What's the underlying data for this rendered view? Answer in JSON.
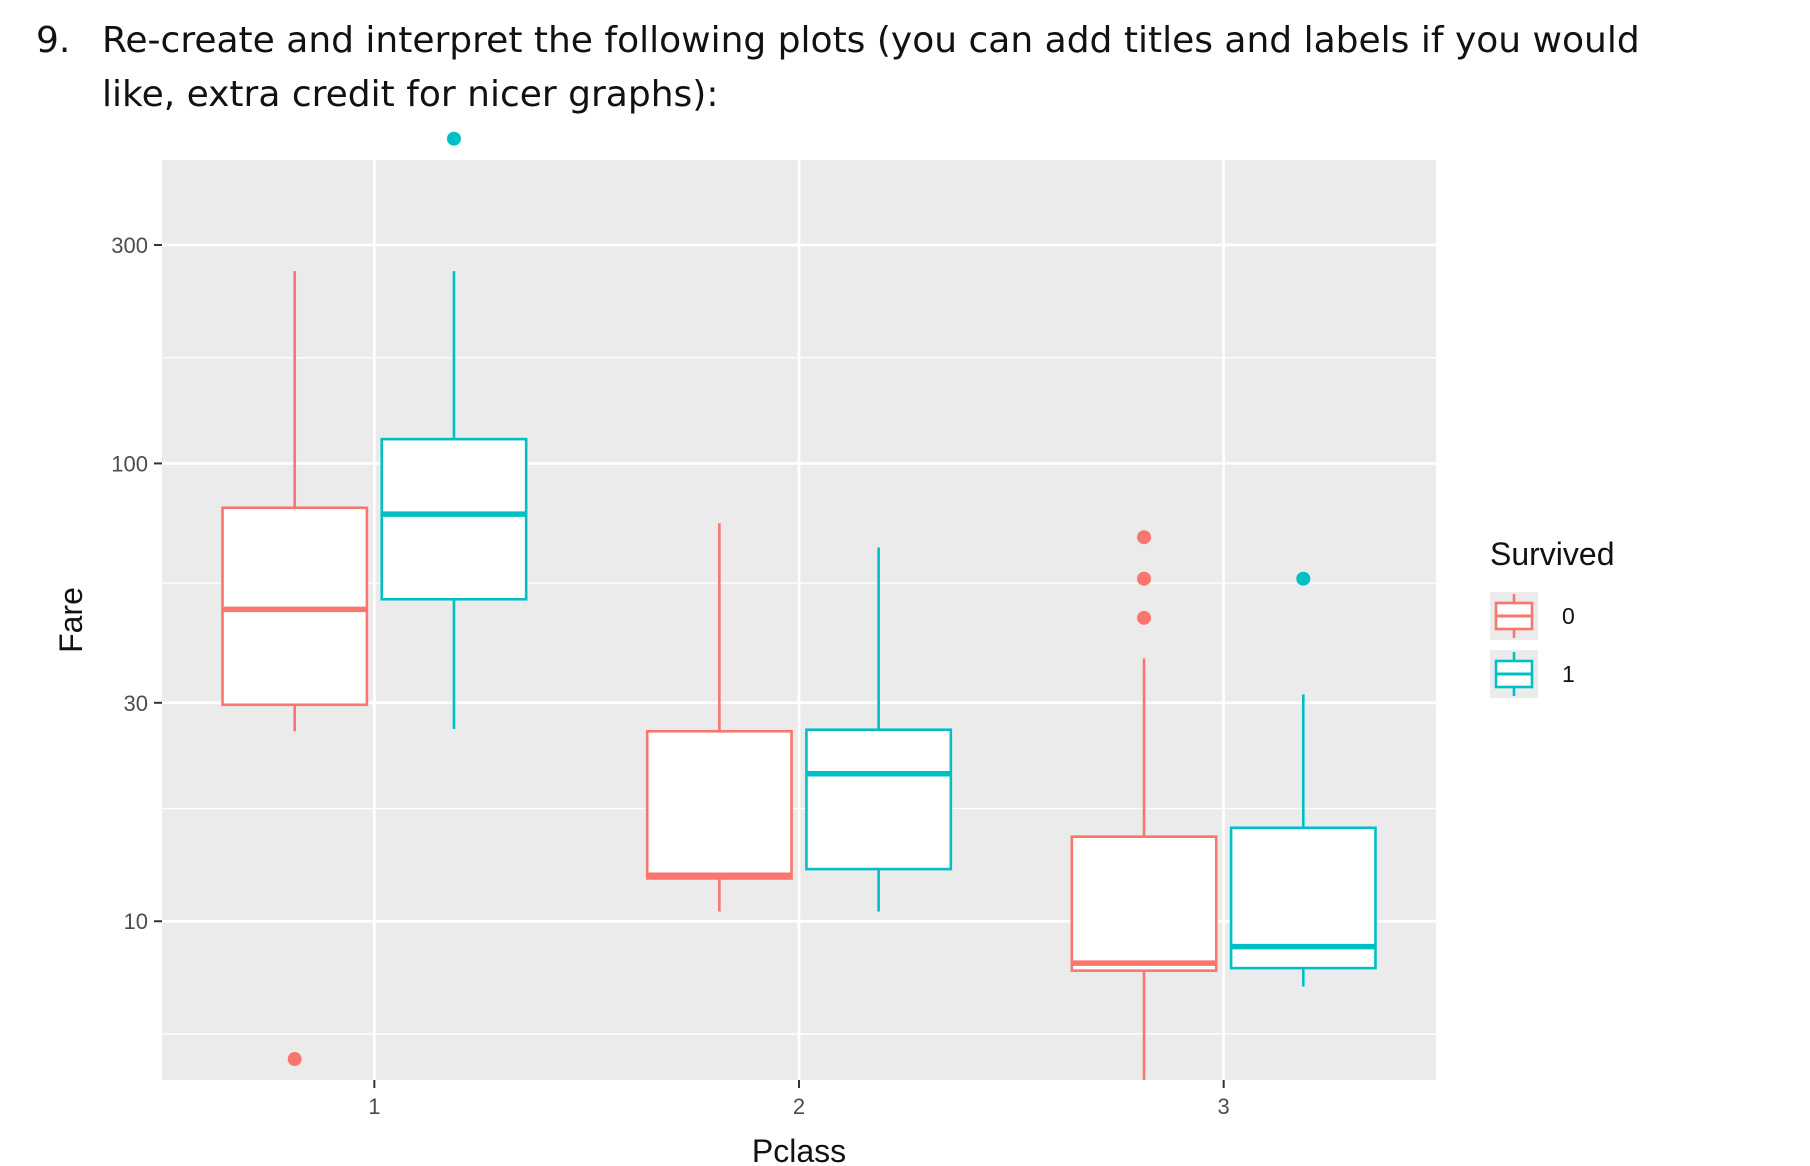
{
  "question": {
    "number": "9.",
    "text": "Re-create and interpret the following plots (you can add titles and labels if you would like, extra credit for nicer graphs):"
  },
  "chart_data": {
    "type": "boxplot",
    "xlabel": "Pclass",
    "ylabel": "Fare",
    "y_scale": "log10",
    "y_ticks": [
      10,
      30,
      100,
      300
    ],
    "ylim": [
      4.5,
      460
    ],
    "categories": [
      "1",
      "2",
      "3"
    ],
    "grid": true,
    "legend": {
      "title": "Survived",
      "position": "right"
    },
    "colors": {
      "0": "#F8766D",
      "1": "#00BFC4",
      "panel": "#EBEBEB",
      "grid": "#FFFFFF"
    },
    "series": [
      {
        "name": "0",
        "boxes": [
          {
            "category": "1",
            "whisker_low": 26,
            "q1": 29.7,
            "median": 48,
            "q3": 80,
            "whisker_high": 263,
            "outliers": [
              5
            ]
          },
          {
            "category": "2",
            "whisker_low": 10.5,
            "q1": 12.4,
            "median": 12.6,
            "q3": 26,
            "whisker_high": 74,
            "outliers": []
          },
          {
            "category": "3",
            "whisker_low": 4.5,
            "q1": 7.8,
            "median": 8.1,
            "q3": 15.3,
            "whisker_high": 37.5,
            "outliers": [
              46,
              56,
              69
            ]
          }
        ]
      },
      {
        "name": "1",
        "boxes": [
          {
            "category": "1",
            "whisker_low": 26.3,
            "q1": 50.5,
            "median": 77.5,
            "q3": 113,
            "whisker_high": 263,
            "outliers": [
              512
            ]
          },
          {
            "category": "2",
            "whisker_low": 10.5,
            "q1": 13,
            "median": 21,
            "q3": 26.2,
            "whisker_high": 65.5,
            "outliers": []
          },
          {
            "category": "3",
            "whisker_low": 7.2,
            "q1": 7.9,
            "median": 8.8,
            "q3": 16,
            "whisker_high": 31.3,
            "outliers": [
              56
            ]
          }
        ]
      }
    ]
  }
}
